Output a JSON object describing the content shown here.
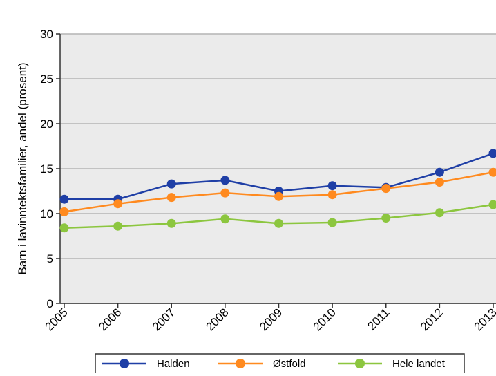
{
  "chart_data": {
    "type": "line",
    "title": "",
    "xlabel": "",
    "ylabel": "Barn i lavinntektsfamilier, andel (prosent)",
    "categories": [
      "2005",
      "2006",
      "2007",
      "2008",
      "2009",
      "2010",
      "2011",
      "2012",
      "2013"
    ],
    "ylim": [
      0,
      30
    ],
    "yticks": [
      "0",
      "5",
      "10",
      "15",
      "20",
      "25",
      "30"
    ],
    "grid": true,
    "legend_position": "bottom",
    "series": [
      {
        "name": "Halden",
        "color": "#1f3fa6",
        "values": [
          11.6,
          11.6,
          13.3,
          13.7,
          12.5,
          13.1,
          12.9,
          14.6,
          16.7
        ]
      },
      {
        "name": "Østfold",
        "color": "#ff8a1f",
        "values": [
          10.2,
          11.1,
          11.8,
          12.3,
          11.9,
          12.1,
          12.8,
          13.5,
          14.6
        ]
      },
      {
        "name": "Hele landet",
        "color": "#8cc63f",
        "values": [
          8.4,
          8.6,
          8.9,
          9.4,
          8.9,
          9.0,
          9.5,
          10.1,
          11.0
        ]
      }
    ]
  }
}
